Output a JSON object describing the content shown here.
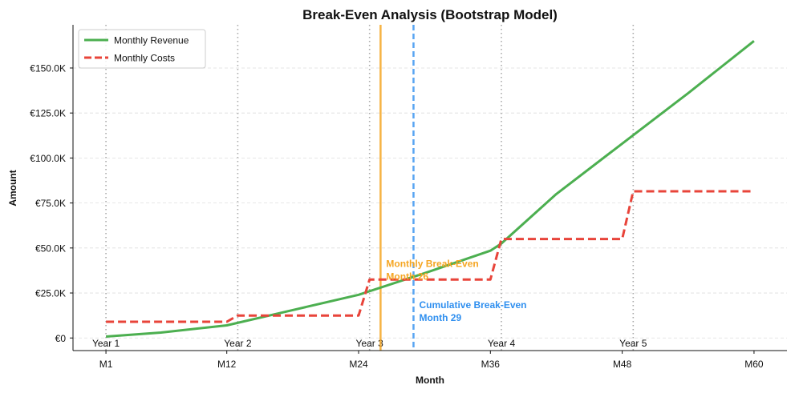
{
  "chart_data": {
    "type": "line",
    "title": "Break-Even Analysis (Bootstrap Model)",
    "xlabel": "Month",
    "ylabel": "Amount",
    "x_ticks": [
      {
        "month": 1,
        "label": "M1"
      },
      {
        "month": 12,
        "label": "M12"
      },
      {
        "month": 24,
        "label": "M24"
      },
      {
        "month": 36,
        "label": "M36"
      },
      {
        "month": 48,
        "label": "M48"
      },
      {
        "month": 60,
        "label": "M60"
      }
    ],
    "y_ticks": [
      {
        "value": 0,
        "label": "€0"
      },
      {
        "value": 25000,
        "label": "€25.0K"
      },
      {
        "value": 50000,
        "label": "€50.0K"
      },
      {
        "value": 75000,
        "label": "€75.0K"
      },
      {
        "value": 100000,
        "label": "€100.0K"
      },
      {
        "value": 125000,
        "label": "€125.0K"
      },
      {
        "value": 150000,
        "label": "€150.0K"
      }
    ],
    "xlim": [
      -2,
      63
    ],
    "ylim": [
      -7000,
      174000
    ],
    "year_markers": [
      {
        "month": 1,
        "label": "Year 1"
      },
      {
        "month": 13,
        "label": "Year 2"
      },
      {
        "month": 25,
        "label": "Year 3"
      },
      {
        "month": 37,
        "label": "Year 4"
      },
      {
        "month": 49,
        "label": "Year 5"
      }
    ],
    "series": [
      {
        "name": "Monthly Revenue",
        "color": "#4caf50",
        "style": "solid",
        "points": [
          [
            1,
            800
          ],
          [
            6,
            3000
          ],
          [
            12,
            7000
          ],
          [
            18,
            15500
          ],
          [
            24,
            24000
          ],
          [
            30,
            36000
          ],
          [
            36,
            48500
          ],
          [
            37,
            52500
          ],
          [
            42,
            80000
          ],
          [
            48,
            108000
          ],
          [
            54,
            136000
          ],
          [
            60,
            165000
          ]
        ]
      },
      {
        "name": "Monthly Costs",
        "color": "#e8443a",
        "style": "dashed",
        "points": [
          [
            1,
            9000
          ],
          [
            12,
            9000
          ],
          [
            13,
            12500
          ],
          [
            24,
            12500
          ],
          [
            25,
            32500
          ],
          [
            36,
            32500
          ],
          [
            37,
            55000
          ],
          [
            48,
            55000
          ],
          [
            49,
            81500
          ],
          [
            60,
            81500
          ]
        ]
      }
    ],
    "break_even": {
      "monthly": {
        "month": 26,
        "color": "#f5a623",
        "label_line1": "Monthly Break-Even",
        "label_line2": "Month 26"
      },
      "cumulative": {
        "month": 29,
        "color": "#2f8fef",
        "label_line1": "Cumulative Break-Even",
        "label_line2": "Month 29"
      }
    },
    "grid": "y-dashed",
    "legend_position": "top-left"
  }
}
